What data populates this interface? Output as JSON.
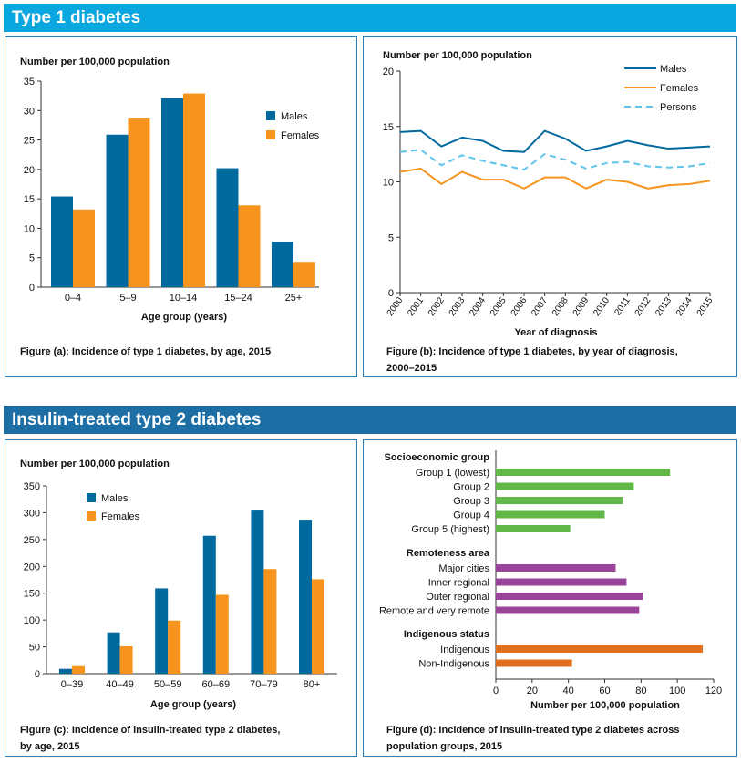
{
  "headers": {
    "type1": "Type 1 diabetes",
    "type2": "Insulin-treated type 2 diabetes"
  },
  "colors": {
    "header1": "#0aa6df",
    "header2": "#1c6ea4",
    "males": "#00699e",
    "females": "#f7941d",
    "persons": "#5fc4ea",
    "socio": "#62b847",
    "remote": "#994499",
    "indig": "#e07020"
  },
  "chart_data": [
    {
      "id": "a",
      "type": "bar",
      "ylabel": "Number per 100,000 population",
      "xlabel": "Age group (years)",
      "caption": "Figure (a): Incidence of type 1 diabetes, by age, 2015",
      "categories": [
        "0–4",
        "5–9",
        "10–14",
        "15–24",
        "25+"
      ],
      "ylim": [
        0,
        35
      ],
      "yticks": [
        0,
        5,
        10,
        15,
        20,
        25,
        30,
        35
      ],
      "legend": "right",
      "series": [
        {
          "name": "Males",
          "values": [
            15.4,
            25.9,
            32.1,
            20.2,
            7.7
          ]
        },
        {
          "name": "Females",
          "values": [
            13.2,
            28.8,
            32.9,
            13.9,
            4.3
          ]
        }
      ]
    },
    {
      "id": "b",
      "type": "line",
      "ylabel": "Number per 100,000 population",
      "xlabel": "Year of diagnosis",
      "caption1": "Figure (b): Incidence of type 1 diabetes, by year of diagnosis,",
      "caption2": "2000–2015",
      "x": [
        "2000",
        "2001",
        "2002",
        "2003",
        "2004",
        "2005",
        "2006",
        "2007",
        "2008",
        "2009",
        "2010",
        "2011",
        "2012",
        "2013",
        "2014",
        "2015"
      ],
      "ylim": [
        0,
        20
      ],
      "yticks": [
        0,
        5,
        10,
        15,
        20
      ],
      "legend": "top-right",
      "series": [
        {
          "name": "Males",
          "values": [
            14.5,
            14.6,
            13.2,
            14.0,
            13.7,
            12.8,
            12.7,
            14.6,
            13.9,
            12.8,
            13.2,
            13.7,
            13.3,
            13.0,
            13.1,
            13.2
          ]
        },
        {
          "name": "Females",
          "values": [
            10.9,
            11.2,
            9.8,
            10.9,
            10.2,
            10.2,
            9.4,
            10.4,
            10.4,
            9.4,
            10.2,
            10.0,
            9.4,
            9.7,
            9.8,
            10.1
          ]
        },
        {
          "name": "Persons",
          "values": [
            12.7,
            12.9,
            11.5,
            12.4,
            11.9,
            11.5,
            11.1,
            12.5,
            12.0,
            11.2,
            11.7,
            11.8,
            11.4,
            11.3,
            11.4,
            11.7
          ]
        }
      ]
    },
    {
      "id": "c",
      "type": "bar",
      "ylabel": "Number per 100,000 population",
      "xlabel": "Age group (years)",
      "caption1": "Figure (c): Incidence of insulin-treated type 2 diabetes,",
      "caption2": "by age, 2015",
      "categories": [
        "0–39",
        "40–49",
        "50–59",
        "60–69",
        "70–79",
        "80+"
      ],
      "ylim": [
        0,
        350
      ],
      "yticks": [
        0,
        50,
        100,
        150,
        200,
        250,
        300,
        350
      ],
      "legend": "top-left",
      "series": [
        {
          "name": "Males",
          "values": [
            9,
            77,
            159,
            257,
            304,
            287
          ]
        },
        {
          "name": "Females",
          "values": [
            14,
            51,
            99,
            147,
            195,
            176
          ]
        }
      ]
    },
    {
      "id": "d",
      "type": "bar",
      "orientation": "horizontal",
      "xlabel": "Number per 100,000 population",
      "caption1": "Figure (d): Incidence of insulin-treated type 2 diabetes across",
      "caption2": "population groups, 2015",
      "xlim": [
        0,
        120
      ],
      "xticks": [
        0,
        20,
        40,
        60,
        80,
        100,
        120
      ],
      "groups": [
        {
          "name": "Socioeconomic group",
          "color": "socio",
          "categories": [
            "Group 1 (lowest)",
            "Group 2",
            "Group 3",
            "Group 4",
            "Group 5 (highest)"
          ],
          "values": [
            96,
            76,
            70,
            60,
            41
          ]
        },
        {
          "name": "Remoteness area",
          "color": "remote",
          "categories": [
            "Major cities",
            "Inner regional",
            "Outer regional",
            "Remote and very remote"
          ],
          "values": [
            66,
            72,
            81,
            79
          ]
        },
        {
          "name": "Indigenous status",
          "color": "indig",
          "categories": [
            "Indigenous",
            "Non-Indigenous"
          ],
          "values": [
            114,
            42
          ]
        }
      ]
    }
  ]
}
